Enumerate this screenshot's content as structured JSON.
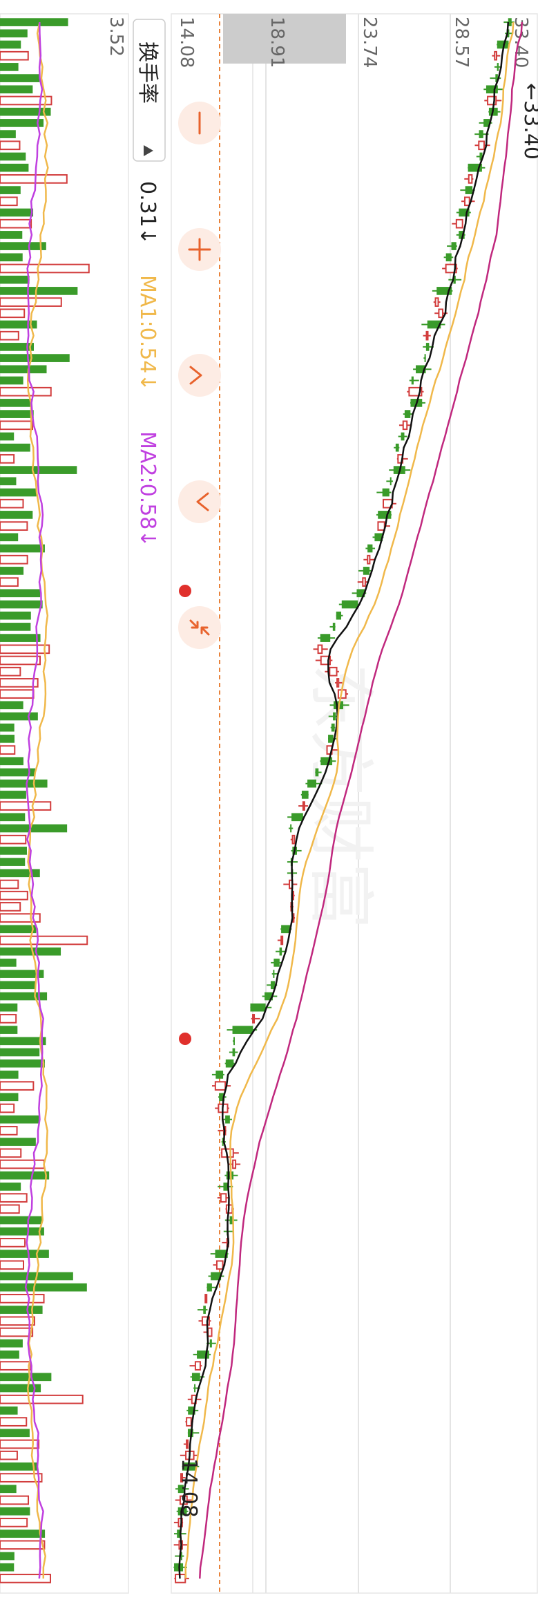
{
  "chart_data": {
    "type": "candlestick",
    "orientation": "rotated-90-clockwise",
    "price_ticks": [
      "33.40",
      "28.57",
      "23.74",
      "18.91",
      "14.08"
    ],
    "price_range": [
      14.08,
      33.4
    ],
    "price_label_high": "←33.40",
    "price_label_low": "14.08",
    "volume_top_label": "3.52",
    "indicator_selector": "换手率",
    "indicator_value": "0.31↓",
    "ma1_label": "MA1:0.54↓",
    "ma2_label": "MA2:0.58↓",
    "watermark": "东方财富",
    "colors": {
      "up": "#d23c3c",
      "down": "#3a9b2a",
      "ma_black": "#111111",
      "ma_orange": "#f0b84a",
      "ma_purple": "#c0287e",
      "vol_ma1": "#f0b84a",
      "vol_ma2": "#c040e0",
      "accent": "#e8622c"
    },
    "controls": [
      "minus-icon",
      "plus-icon",
      "chevron-left-icon",
      "chevron-right-icon",
      "collapse-icon"
    ]
  }
}
